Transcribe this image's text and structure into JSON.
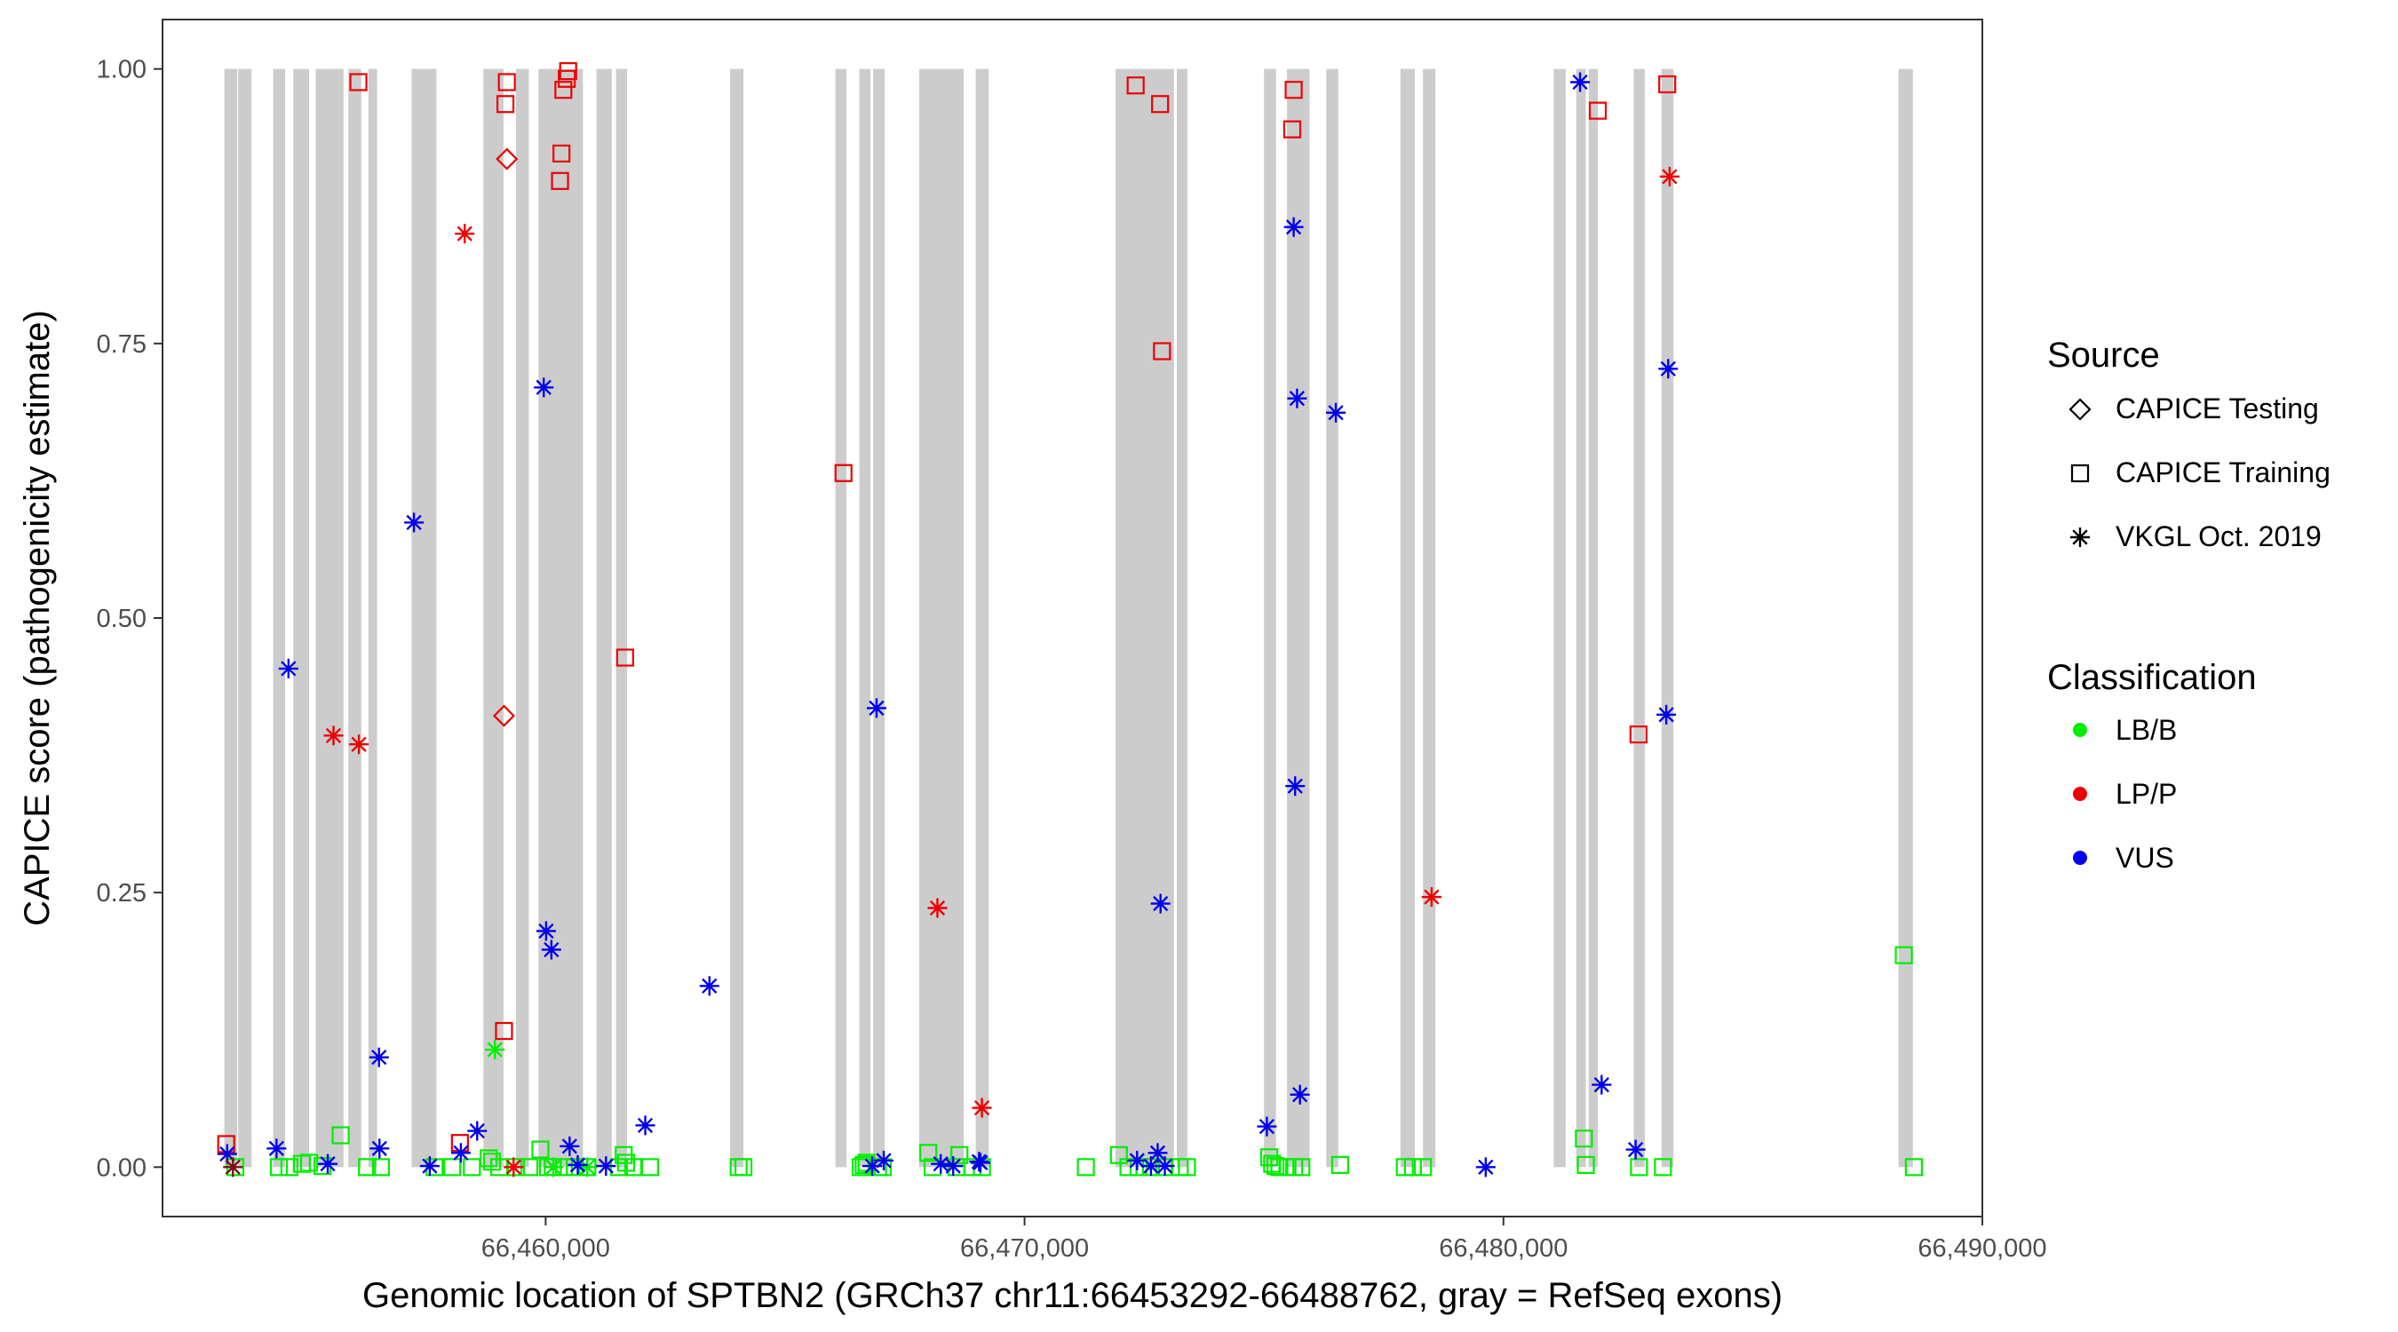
{
  "chart_data": {
    "type": "scatter",
    "xlabel": "Genomic location of SPTBN2 (GRCh37 chr11:66453292-66488762, gray = RefSeq exons)",
    "ylabel": "CAPICE score (pathogenicity estimate)",
    "xlim": [
      66452000,
      66490000
    ],
    "ylim": [
      -0.045,
      1.045
    ],
    "x_ticks": [
      66460000,
      66470000,
      66480000,
      66490000
    ],
    "x_tick_labels": [
      "66,460,000",
      "66,470,000",
      "66,480,000",
      "66,490,000"
    ],
    "y_ticks": [
      0,
      0.25,
      0.5,
      0.75,
      1
    ],
    "y_tick_labels": [
      "0.00",
      "0.25",
      "0.50",
      "0.75",
      "1.00"
    ],
    "grid": false,
    "legend_position": "right",
    "exons": [
      [
        66453292,
        66453560
      ],
      [
        66453580,
        66453860
      ],
      [
        66454310,
        66454560
      ],
      [
        66454730,
        66455060
      ],
      [
        66455200,
        66455780
      ],
      [
        66455880,
        66456150
      ],
      [
        66456300,
        66456480
      ],
      [
        66457200,
        66457720
      ],
      [
        66458700,
        66459120
      ],
      [
        66459380,
        66459650
      ],
      [
        66459850,
        66460780
      ],
      [
        66461060,
        66461380
      ],
      [
        66461470,
        66461700
      ],
      [
        66463850,
        66464130
      ],
      [
        66466050,
        66466280
      ],
      [
        66466550,
        66466780
      ],
      [
        66466840,
        66467080
      ],
      [
        66467800,
        66468730
      ],
      [
        66468980,
        66469250
      ],
      [
        66471900,
        66473120
      ],
      [
        66473180,
        66473400
      ],
      [
        66475000,
        66475250
      ],
      [
        66475480,
        66475950
      ],
      [
        66476300,
        66476550
      ],
      [
        66477850,
        66478150
      ],
      [
        66478320,
        66478580
      ],
      [
        66481050,
        66481300
      ],
      [
        66481520,
        66481720
      ],
      [
        66481780,
        66481970
      ],
      [
        66482720,
        66482950
      ],
      [
        66483300,
        66483550
      ],
      [
        66488250,
        66488550
      ]
    ],
    "legend": {
      "source_title": "Source",
      "source_items": [
        {
          "label": "CAPICE Testing",
          "shape": "diamond"
        },
        {
          "label": "CAPICE Training",
          "shape": "square"
        },
        {
          "label": "VKGL Oct. 2019",
          "shape": "asterisk"
        }
      ],
      "class_title": "Classification",
      "class_items": [
        {
          "label": "LB/B",
          "color": "#00ee00"
        },
        {
          "label": "LP/P",
          "color": "#ee0000"
        },
        {
          "label": "VUS",
          "color": "#0000ee"
        }
      ]
    },
    "colors": {
      "LB/B": "#00ee00",
      "LP/P": "#ee0000",
      "VUS": "#0000ee",
      "exon": "#cccccc",
      "panel_border": "#333333"
    },
    "series": [
      {
        "name": "CAPICE Testing",
        "classification": "LP/P",
        "shape": "diamond",
        "x": [
          66459190,
          66459130
        ],
        "y": [
          0.918,
          0.411
        ]
      },
      {
        "name": "CAPICE Training",
        "classification": "LP/P",
        "shape": "square",
        "x": [
          66453330,
          66456090,
          66458210,
          66459130,
          66459160,
          66459190,
          66460300,
          66460330,
          66460370,
          66460440,
          66460470,
          66461660,
          66466220,
          66472320,
          66472830,
          66472870,
          66475590,
          66475620,
          66481970,
          66482820,
          66483420
        ],
        "y": [
          0.021,
          0.988,
          0.022,
          0.124,
          0.968,
          0.988,
          0.898,
          0.923,
          0.981,
          0.991,
          0.998,
          0.464,
          0.632,
          0.985,
          0.968,
          0.743,
          0.945,
          0.981,
          0.962,
          0.394,
          0.986
        ],
        "note_y_zero_x": [
          66459310
        ]
      },
      {
        "name": "CAPICE Training",
        "classification": "LB/B",
        "shape": "square",
        "x": [
          66453520,
          66454430,
          66454650,
          66454910,
          66455060,
          66455340,
          66455720,
          66456270,
          66456560,
          66457680,
          66458050,
          66458460,
          66458810,
          66458880,
          66459030,
          66459380,
          66459660,
          66459890,
          66460050,
          66460150,
          66460380,
          66460610,
          66460870,
          66461530,
          66461630,
          66461680,
          66461830,
          66462180,
          66464030,
          66464130,
          66466580,
          66466640,
          66466700,
          66466940,
          66467040,
          66467990,
          66468080,
          66468580,
          66468640,
          66468910,
          66469110,
          66471280,
          66471970,
          66472170,
          66472380,
          66472640,
          66472920,
          66473240,
          66473390,
          66475110,
          66475170,
          66475240,
          66475320,
          66475490,
          66475630,
          66475780,
          66476590,
          66477940,
          66478110,
          66478320,
          66481680,
          66481720,
          66482830,
          66483330,
          66488360,
          66488570
        ],
        "y": [
          0.0,
          0.0,
          0.0,
          0.003,
          0.004,
          0.001,
          0.029,
          0.0,
          0.0,
          0.0,
          0.0,
          0.0,
          0.008,
          0.005,
          0.0,
          0.0,
          0.0,
          0.016,
          0.0,
          0.0,
          0.0,
          0.0,
          0.0,
          0.0,
          0.011,
          0.004,
          0.0,
          0.0,
          0.0,
          0.0,
          0.0,
          0.002,
          0.004,
          0.0,
          0.0,
          0.013,
          0.0,
          0.0,
          0.011,
          0.0,
          0.0,
          0.0,
          0.011,
          0.0,
          0.0,
          0.0,
          0.0,
          0.0,
          0.0,
          0.009,
          0.003,
          0.001,
          0.0,
          0.0,
          0.0,
          0.0,
          0.002,
          0.0,
          0.0,
          0.0,
          0.026,
          0.002,
          0.0,
          0.0,
          0.193,
          0.0
        ]
      },
      {
        "name": "VKGL Oct. 2019",
        "classification": "LP/P",
        "shape": "asterisk",
        "x": [
          66455570,
          66456100,
          66458310,
          66459330,
          66468180,
          66469110,
          66478500,
          66483470
        ],
        "y": [
          0.393,
          0.385,
          0.85,
          0.0,
          0.236,
          0.054,
          0.246,
          0.902
        ]
      },
      {
        "name": "VKGL Oct. 2019",
        "classification": "LB/B",
        "shape": "asterisk",
        "x": [
          66458940,
          66460160,
          66460870
        ],
        "y": [
          0.107,
          0.0,
          0.0
        ]
      },
      {
        "name": "VKGL Oct. 2019",
        "classification": "VUS",
        "shape": "asterisk",
        "x": [
          66453350,
          66454380,
          66454630,
          66455450,
          66456520,
          66456530,
          66457250,
          66457580,
          66458230,
          66458570,
          66459960,
          66460010,
          66460120,
          66460500,
          66460670,
          66461260,
          66462080,
          66463420,
          66466820,
          66466910,
          66467060,
          66468250,
          66468510,
          66469050,
          66469080,
          66472350,
          66472640,
          66472780,
          66472840,
          66472930,
          66475060,
          66475620,
          66475650,
          66475690,
          66475750,
          66476500,
          66479630,
          66481600,
          66482050,
          66482760,
          66483400,
          66483440
        ],
        "y": [
          0.012,
          0.017,
          0.454,
          0.003,
          0.1,
          0.017,
          0.587,
          0.001,
          0.013,
          0.033,
          0.71,
          0.215,
          0.198,
          0.019,
          0.002,
          0.001,
          0.038,
          0.165,
          0.001,
          0.418,
          0.006,
          0.003,
          0.001,
          0.005,
          0.004,
          0.006,
          0.001,
          0.013,
          0.24,
          0.001,
          0.037,
          0.856,
          0.347,
          0.7,
          0.066,
          0.687,
          0.0,
          0.988,
          0.075,
          0.016,
          0.412,
          0.727
        ]
      },
      {
        "name": "VKGL Oct. 2019",
        "classification": "LP/P",
        "shape": "asterisk-dark",
        "x": [
          66453470
        ],
        "y": [
          0.0
        ]
      }
    ]
  }
}
